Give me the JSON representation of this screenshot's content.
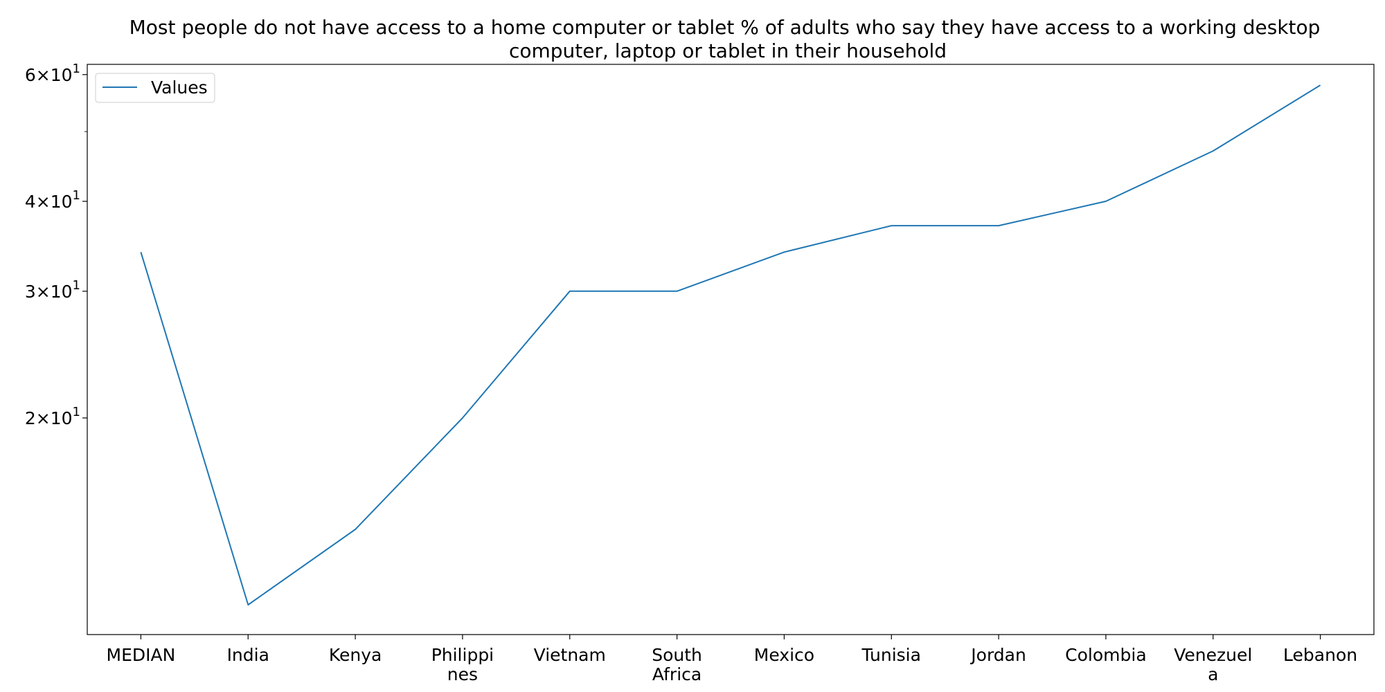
{
  "chart_data": {
    "type": "line",
    "title_lines": [
      "Most people do not have access to a home computer or tablet % of adults who say they have access to a working desktop",
      "computer, laptop or tablet in their household"
    ],
    "categories": [
      "MEDIAN",
      "India",
      "Kenya",
      "Philippines",
      "Vietnam",
      "South Africa",
      "Mexico",
      "Tunisia",
      "Jordan",
      "Colombia",
      "Venezuela",
      "Lebanon"
    ],
    "category_label_lines": [
      [
        "MEDIAN"
      ],
      [
        "India"
      ],
      [
        "Kenya"
      ],
      [
        "Philippi",
        "nes"
      ],
      [
        "Vietnam"
      ],
      [
        "South",
        "Africa"
      ],
      [
        "Mexico"
      ],
      [
        "Tunisia"
      ],
      [
        "Jordan"
      ],
      [
        "Colombia"
      ],
      [
        "Venezuel",
        "a"
      ],
      [
        "Lebanon"
      ]
    ],
    "series": [
      {
        "name": "Values",
        "values": [
          34,
          11,
          14,
          20,
          30,
          30,
          34,
          37,
          37,
          40,
          47,
          58
        ],
        "color": "#1f77b4"
      }
    ],
    "y_scale": "log",
    "ylim": [
      10,
      62
    ],
    "yticks": [
      {
        "value": 20,
        "mantissa": "2",
        "base": "10",
        "exp": "1"
      },
      {
        "value": 30,
        "mantissa": "3",
        "base": "10",
        "exp": "1"
      },
      {
        "value": 40,
        "mantissa": "4",
        "base": "10",
        "exp": "1"
      },
      {
        "value": 60,
        "mantissa": "6",
        "base": "10",
        "exp": "1"
      }
    ],
    "minor_yticks": [
      50
    ],
    "xlabel": "",
    "ylabel": "",
    "grid": false,
    "legend_position": "top-left"
  }
}
